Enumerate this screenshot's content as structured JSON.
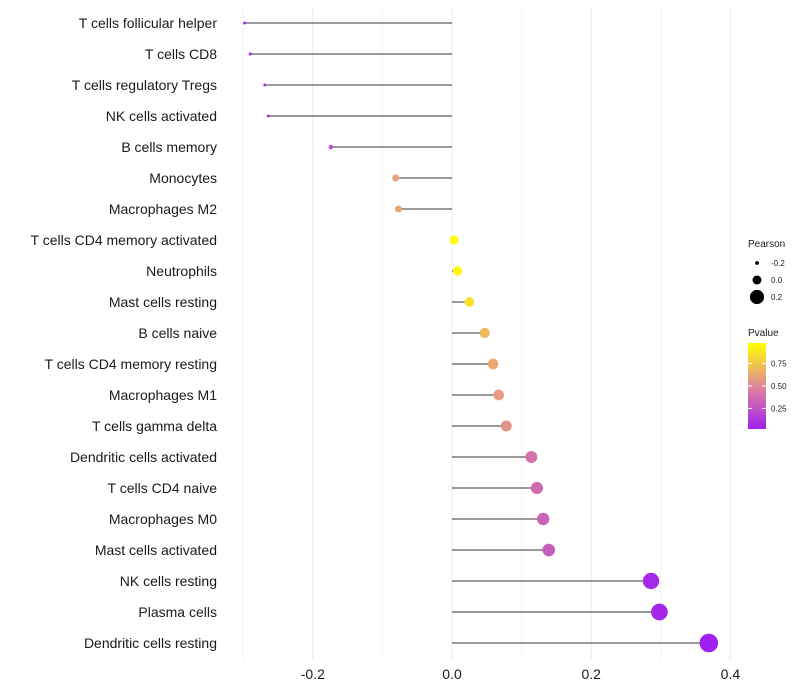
{
  "chart_data": {
    "type": "lollipop",
    "title": "",
    "xlabel": "",
    "ylabel": "",
    "xlim": [
      -0.3,
      0.4
    ],
    "xticks": [
      -0.2,
      0.0,
      0.2,
      0.4
    ],
    "xtick_labels": [
      "-0.2",
      "0.0",
      "0.2",
      "0.4"
    ],
    "grid": true,
    "baseline": 0.0,
    "categories": [
      "T cells follicular helper",
      "T cells CD8",
      "T cells regulatory  Tregs",
      "NK cells activated",
      "B cells memory",
      "Monocytes",
      "Macrophages M2",
      "T cells CD4 memory activated",
      "Neutrophils",
      "Mast cells resting",
      "B cells naive",
      "T cells CD4 memory resting",
      "Macrophages M1",
      "T cells gamma delta",
      "Dendritic cells activated",
      "T cells CD4 naive",
      "Macrophages M0",
      "Mast cells activated",
      "NK cells resting",
      "Plasma cells",
      "Dendritic cells resting"
    ],
    "values": [
      -0.298,
      -0.29,
      -0.269,
      -0.264,
      -0.174,
      -0.081,
      -0.077,
      0.003,
      0.008,
      0.025,
      0.047,
      0.059,
      0.067,
      0.078,
      0.114,
      0.122,
      0.131,
      0.139,
      0.286,
      0.298,
      0.369
    ],
    "pvalues": [
      0.04,
      0.05,
      0.08,
      0.09,
      0.24,
      0.6,
      0.62,
      0.98,
      0.95,
      0.85,
      0.7,
      0.63,
      0.58,
      0.55,
      0.4,
      0.37,
      0.33,
      0.3,
      0.06,
      0.05,
      0.02
    ],
    "legend": {
      "placement": "right",
      "size_title": "Pearson",
      "size_entries": [
        {
          "label": "-0.2",
          "value": -0.2
        },
        {
          "label": "0.0",
          "value": 0.0
        },
        {
          "label": "0.2",
          "value": 0.2
        }
      ],
      "color_title": "Pvalue",
      "color_ticks": [
        {
          "label": "0.75",
          "value": 0.75
        },
        {
          "label": "0.50",
          "value": 0.5
        },
        {
          "label": "0.25",
          "value": 0.25
        }
      ],
      "color_range": [
        0.02,
        0.98
      ]
    },
    "colors": {
      "low": "#a020f0",
      "mid": "#e0889a",
      "high": "#ffff00",
      "segment": "#333333",
      "grid": "#ebebeb"
    }
  }
}
